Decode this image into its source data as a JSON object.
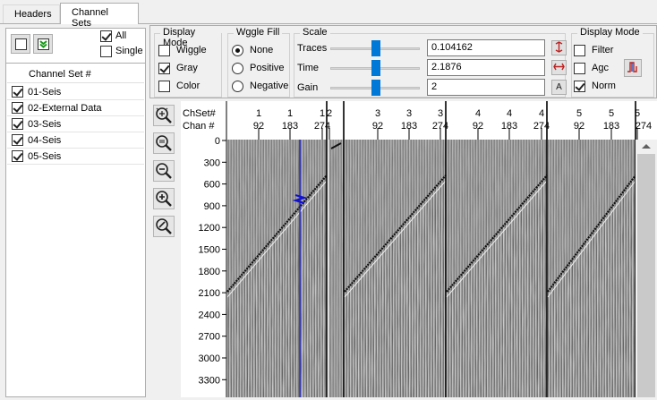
{
  "tabs": [
    {
      "label": "Headers",
      "active": false
    },
    {
      "label": "Channel Sets",
      "active": true
    }
  ],
  "left": {
    "all_label": "All",
    "all_checked": true,
    "single_label": "Single",
    "single_checked": false,
    "list_header": "Channel Set #",
    "items": [
      {
        "label": "01-Seis",
        "checked": true
      },
      {
        "label": "02-External Data",
        "checked": true
      },
      {
        "label": "03-Seis",
        "checked": true
      },
      {
        "label": "04-Seis",
        "checked": true
      },
      {
        "label": "05-Seis",
        "checked": true
      }
    ]
  },
  "display_mode": {
    "title": "Display Mode",
    "wiggle_label": "Wiggle",
    "wiggle_checked": false,
    "gray_label": "Gray",
    "gray_checked": true,
    "color_label": "Color",
    "color_checked": false
  },
  "wiggle_fill": {
    "title": "Wggle Fill",
    "none_label": "None",
    "positive_label": "Positive",
    "negative_label": "Negative",
    "selected": "none"
  },
  "scale": {
    "title": "Scale",
    "traces_label": "Traces",
    "traces_value": "0.104162",
    "traces_slider": 0.55,
    "time_label": "Time",
    "time_value": "2.1876",
    "time_slider": 0.55,
    "gain_label": "Gain",
    "gain_value": "2",
    "gain_slider": 0.55,
    "gain_button": "A"
  },
  "display_mode2": {
    "title": "Display Mode",
    "filter_label": "Filter",
    "filter_checked": false,
    "agc_label": "Agc",
    "agc_checked": false,
    "norm_label": "Norm",
    "norm_checked": true
  },
  "plot": {
    "header_row1": "ChSet#",
    "header_row2": "Chan #",
    "chset_ticks": [
      "1",
      "1",
      "1",
      "2",
      "3",
      "3",
      "3",
      "4",
      "4",
      "4",
      "5",
      "5",
      "5"
    ],
    "chan_ticks": [
      "92",
      "183",
      "274",
      "92",
      "183",
      "274",
      "92",
      "183",
      "274",
      "92",
      "183",
      "274"
    ],
    "time_ticks": [
      "0",
      "300",
      "600",
      "900",
      "1200",
      "1500",
      "1800",
      "2100",
      "2400",
      "2700",
      "3000",
      "3300"
    ],
    "marker_color": "#1010d0"
  }
}
